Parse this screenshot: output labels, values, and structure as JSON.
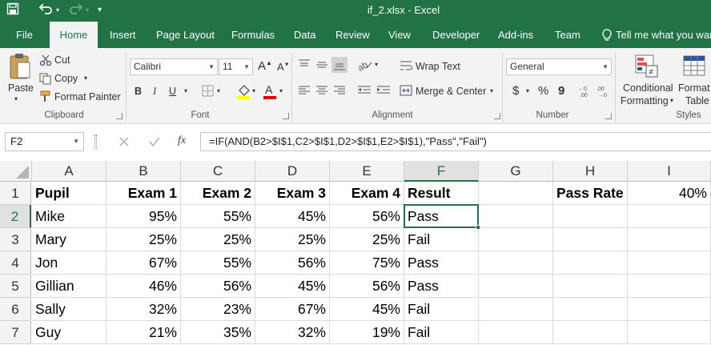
{
  "title_bar": {
    "document_title": "if_2.xlsx - Excel"
  },
  "tabs": [
    "File",
    "Home",
    "Insert",
    "Page Layout",
    "Formulas",
    "Data",
    "Review",
    "View",
    "Developer",
    "Add-ins",
    "Team",
    "Tell me what you want"
  ],
  "ribbon": {
    "clipboard": {
      "paste": "Paste",
      "cut": "Cut",
      "copy": "Copy",
      "format_painter": "Format Painter",
      "label": "Clipboard"
    },
    "font": {
      "name": "Calibri",
      "size": "11",
      "bold": "B",
      "italic": "I",
      "underline": "U",
      "label": "Font"
    },
    "alignment": {
      "wrap_text": "Wrap Text",
      "merge_center": "Merge & Center",
      "label": "Alignment"
    },
    "number": {
      "format": "General",
      "currency": "$",
      "percent": "%",
      "comma": "9",
      "label": "Number"
    },
    "styles": {
      "conditional_formatting_1": "Conditional",
      "conditional_formatting_2": "Formatting",
      "format_table_1": "Format",
      "format_table_2": "Table",
      "label": "Styles"
    }
  },
  "formula_bar": {
    "name_box": "F2",
    "fx": "fx",
    "formula": "=IF(AND(B2>$I$1,C2>$I$1,D2>$I$1,E2>$I$1),\"Pass\",\"Fail\")"
  },
  "sheet": {
    "columns": [
      "A",
      "B",
      "C",
      "D",
      "E",
      "F",
      "G",
      "H",
      "I"
    ],
    "rows": [
      "1",
      "2",
      "3",
      "4",
      "5",
      "6",
      "7"
    ],
    "cells": [
      [
        "Pupil",
        "Exam 1",
        "Exam 2",
        "Exam 3",
        "Exam 4",
        "Result",
        "",
        "Pass Rate",
        "40%"
      ],
      [
        "Mike",
        "95%",
        "55%",
        "45%",
        "56%",
        "Pass",
        "",
        "",
        ""
      ],
      [
        "Mary",
        "25%",
        "25%",
        "25%",
        "25%",
        "Fail",
        "",
        "",
        ""
      ],
      [
        "Jon",
        "67%",
        "55%",
        "56%",
        "75%",
        "Pass",
        "",
        "",
        ""
      ],
      [
        "Gillian",
        "46%",
        "56%",
        "45%",
        "56%",
        "Pass",
        "",
        "",
        ""
      ],
      [
        "Sally",
        "32%",
        "23%",
        "67%",
        "45%",
        "Fail",
        "",
        "",
        ""
      ],
      [
        "Guy",
        "21%",
        "35%",
        "32%",
        "19%",
        "Fail",
        "",
        "",
        ""
      ]
    ],
    "active_cell": "F2"
  },
  "colors": {
    "accent": "#217346",
    "ribbon_bg": "#f3f3f3"
  }
}
